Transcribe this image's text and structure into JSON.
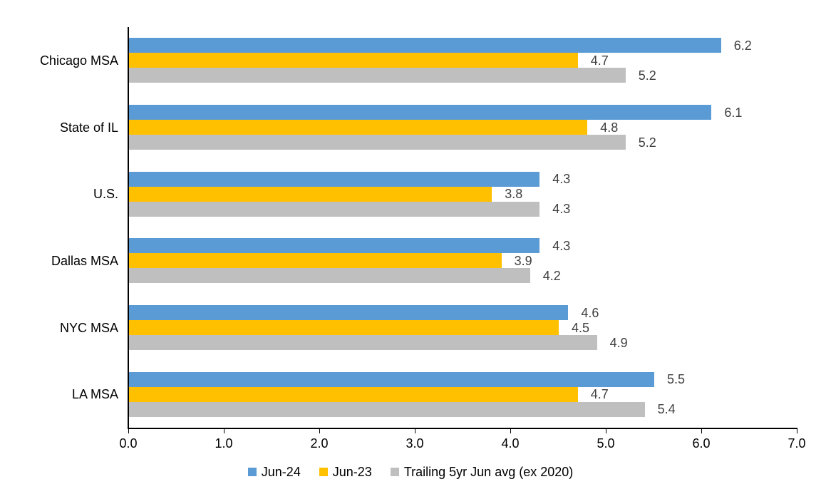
{
  "chart_data": {
    "type": "bar",
    "orientation": "horizontal",
    "categories": [
      "Chicago MSA",
      "State of IL",
      "U.S.",
      "Dallas MSA",
      "NYC MSA",
      "LA MSA"
    ],
    "series": [
      {
        "name": "Jun-24",
        "color": "#5B9BD5",
        "values": [
          6.2,
          6.1,
          4.3,
          4.3,
          4.6,
          5.5
        ]
      },
      {
        "name": "Jun-23",
        "color": "#FFC000",
        "values": [
          4.7,
          4.8,
          3.8,
          3.9,
          4.5,
          4.7
        ]
      },
      {
        "name": "Trailing 5yr Jun avg (ex 2020)",
        "color": "#BFBFBF",
        "values": [
          5.2,
          5.2,
          4.3,
          4.2,
          4.9,
          5.4
        ]
      }
    ],
    "x_axis": {
      "min": 0.0,
      "max": 7.0,
      "tick_interval": 1.0,
      "tick_labels": [
        "0.0",
        "1.0",
        "2.0",
        "3.0",
        "4.0",
        "5.0",
        "6.0",
        "7.0"
      ]
    },
    "data_labels": true,
    "legend_position": "bottom",
    "grid": false
  },
  "colors": {
    "background": "#FFFFFF",
    "axis": "#000000",
    "data_label": "#404040",
    "text": "#000000"
  }
}
